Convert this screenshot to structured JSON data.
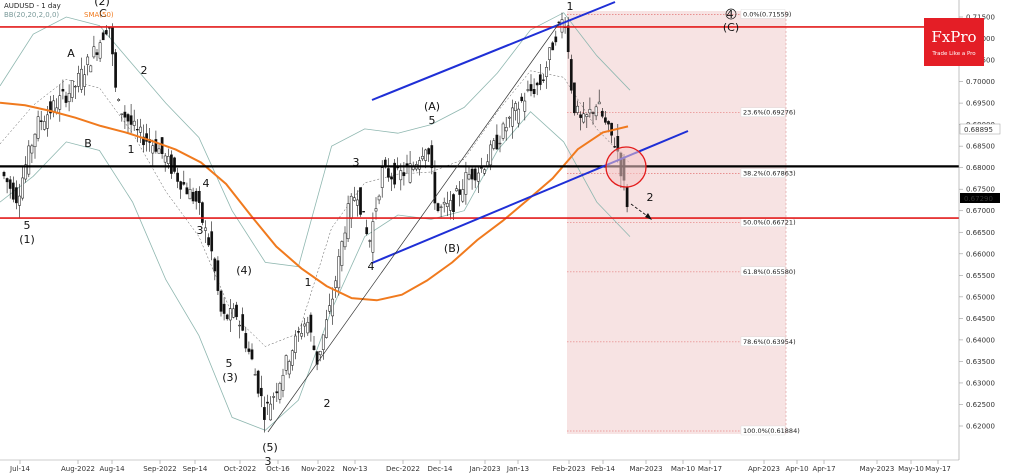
{
  "header": {
    "symbol_line": "AUDUSD - 1 day",
    "bb_line": "BB(20,20,2,0,0)",
    "sma_line": "SMA(50)"
  },
  "logo": {
    "brand": "FxPro",
    "tagline": "Trade Like a Pro",
    "color": "#e41e26"
  },
  "colors": {
    "channel": "#1f2fd6",
    "sma": "#f07a1e",
    "level_red": "#e31b1b",
    "support": "#000000",
    "fib_zone": "#f6dede"
  },
  "chart_data": {
    "type": "candlestick",
    "symbol": "AUDUSD",
    "timeframe": "1 day",
    "ylim": [
      0.6172,
      0.7172
    ],
    "y_ticks": [
      "0.71500",
      "0.71000",
      "0.70500",
      "0.70000",
      "0.69500",
      "0.69000",
      "0.68500",
      "0.68000",
      "0.67500",
      "0.67000",
      "0.66500",
      "0.66000",
      "0.65500",
      "0.65000",
      "0.64500",
      "0.64000",
      "0.63500",
      "0.63000",
      "0.62500",
      "0.62000"
    ],
    "x_ticks": [
      "Jul-14",
      "Aug-2022",
      "Aug-14",
      "Sep-2022",
      "Sep-14",
      "Oct-2022",
      "Oct-16",
      "Nov-2022",
      "Nov-13",
      "Dec-2022",
      "Dec-14",
      "Jan-2023",
      "Jan-13",
      "Feb-2023",
      "Feb-14",
      "Mar-2023",
      "Mar-10",
      "Mar-17",
      "Apr-2023",
      "Apr-10",
      "Apr-17",
      "May-2023",
      "May-10",
      "May-17"
    ],
    "current_price": "0.67290",
    "price_label_2": "0.68895",
    "horizontal_levels": [
      {
        "name": "resistance-upper",
        "value": 0.7127,
        "color": "red"
      },
      {
        "name": "support-black",
        "value": 0.6803,
        "color": "black"
      },
      {
        "name": "support-lower",
        "value": 0.6683,
        "color": "red"
      }
    ],
    "fib_levels": [
      {
        "label": "0.0%(0.71559)",
        "value": 0.71559
      },
      {
        "label": "23.6%(0.69276)",
        "value": 0.69276
      },
      {
        "label": "38.2%(0.67863)",
        "value": 0.67863
      },
      {
        "label": "50.0%(0.66721)",
        "value": 0.66721
      },
      {
        "label": "61.8%(0.65580)",
        "value": 0.6558
      },
      {
        "label": "78.6%(0.63954)",
        "value": 0.63954
      },
      {
        "label": "100.0%(0.61884)",
        "value": 0.61884
      }
    ],
    "wave_labels": [
      "(2)",
      "C",
      "A",
      "B",
      "2",
      "1",
      "5",
      "(1)",
      "4",
      "3",
      "(4)",
      "5",
      "(3)",
      "(5)",
      "3",
      "1",
      "2",
      "3",
      "4",
      "(A)",
      "5",
      "(B)",
      "1",
      "4",
      "(C)",
      "2"
    ],
    "series": [
      {
        "name": "SMA(50)",
        "y": [
          0.6951,
          0.6945,
          0.6932,
          0.6916,
          0.6897,
          0.6882,
          0.6863,
          0.6842,
          0.6812,
          0.6762,
          0.6688,
          0.6617,
          0.6566,
          0.6525,
          0.6497,
          0.6492,
          0.6505,
          0.6538,
          0.658,
          0.6632,
          0.6676,
          0.6725,
          0.6775,
          0.6843,
          0.6882,
          0.6896
        ]
      },
      {
        "name": "BB upper",
        "y": [
          0.699,
          0.711,
          0.715,
          0.713,
          0.704,
          0.695,
          0.687,
          0.67,
          0.658,
          0.657,
          0.685,
          0.689,
          0.688,
          0.69,
          0.694,
          0.702,
          0.712,
          0.716,
          0.706,
          0.698
        ]
      },
      {
        "name": "BB lower",
        "y": [
          0.672,
          0.678,
          0.686,
          0.684,
          0.672,
          0.654,
          0.641,
          0.622,
          0.619,
          0.626,
          0.647,
          0.664,
          0.669,
          0.668,
          0.67,
          0.684,
          0.693,
          0.686,
          0.672,
          0.664
        ]
      }
    ],
    "channel_lines": [
      {
        "name": "channel-upper",
        "from": [
          0.697
        ],
        "to": [
          0.7172
        ]
      },
      {
        "name": "channel-lower",
        "from": [
          0.6585
        ],
        "to": [
          0.69
        ]
      }
    ],
    "grid": false,
    "legend": "none"
  }
}
